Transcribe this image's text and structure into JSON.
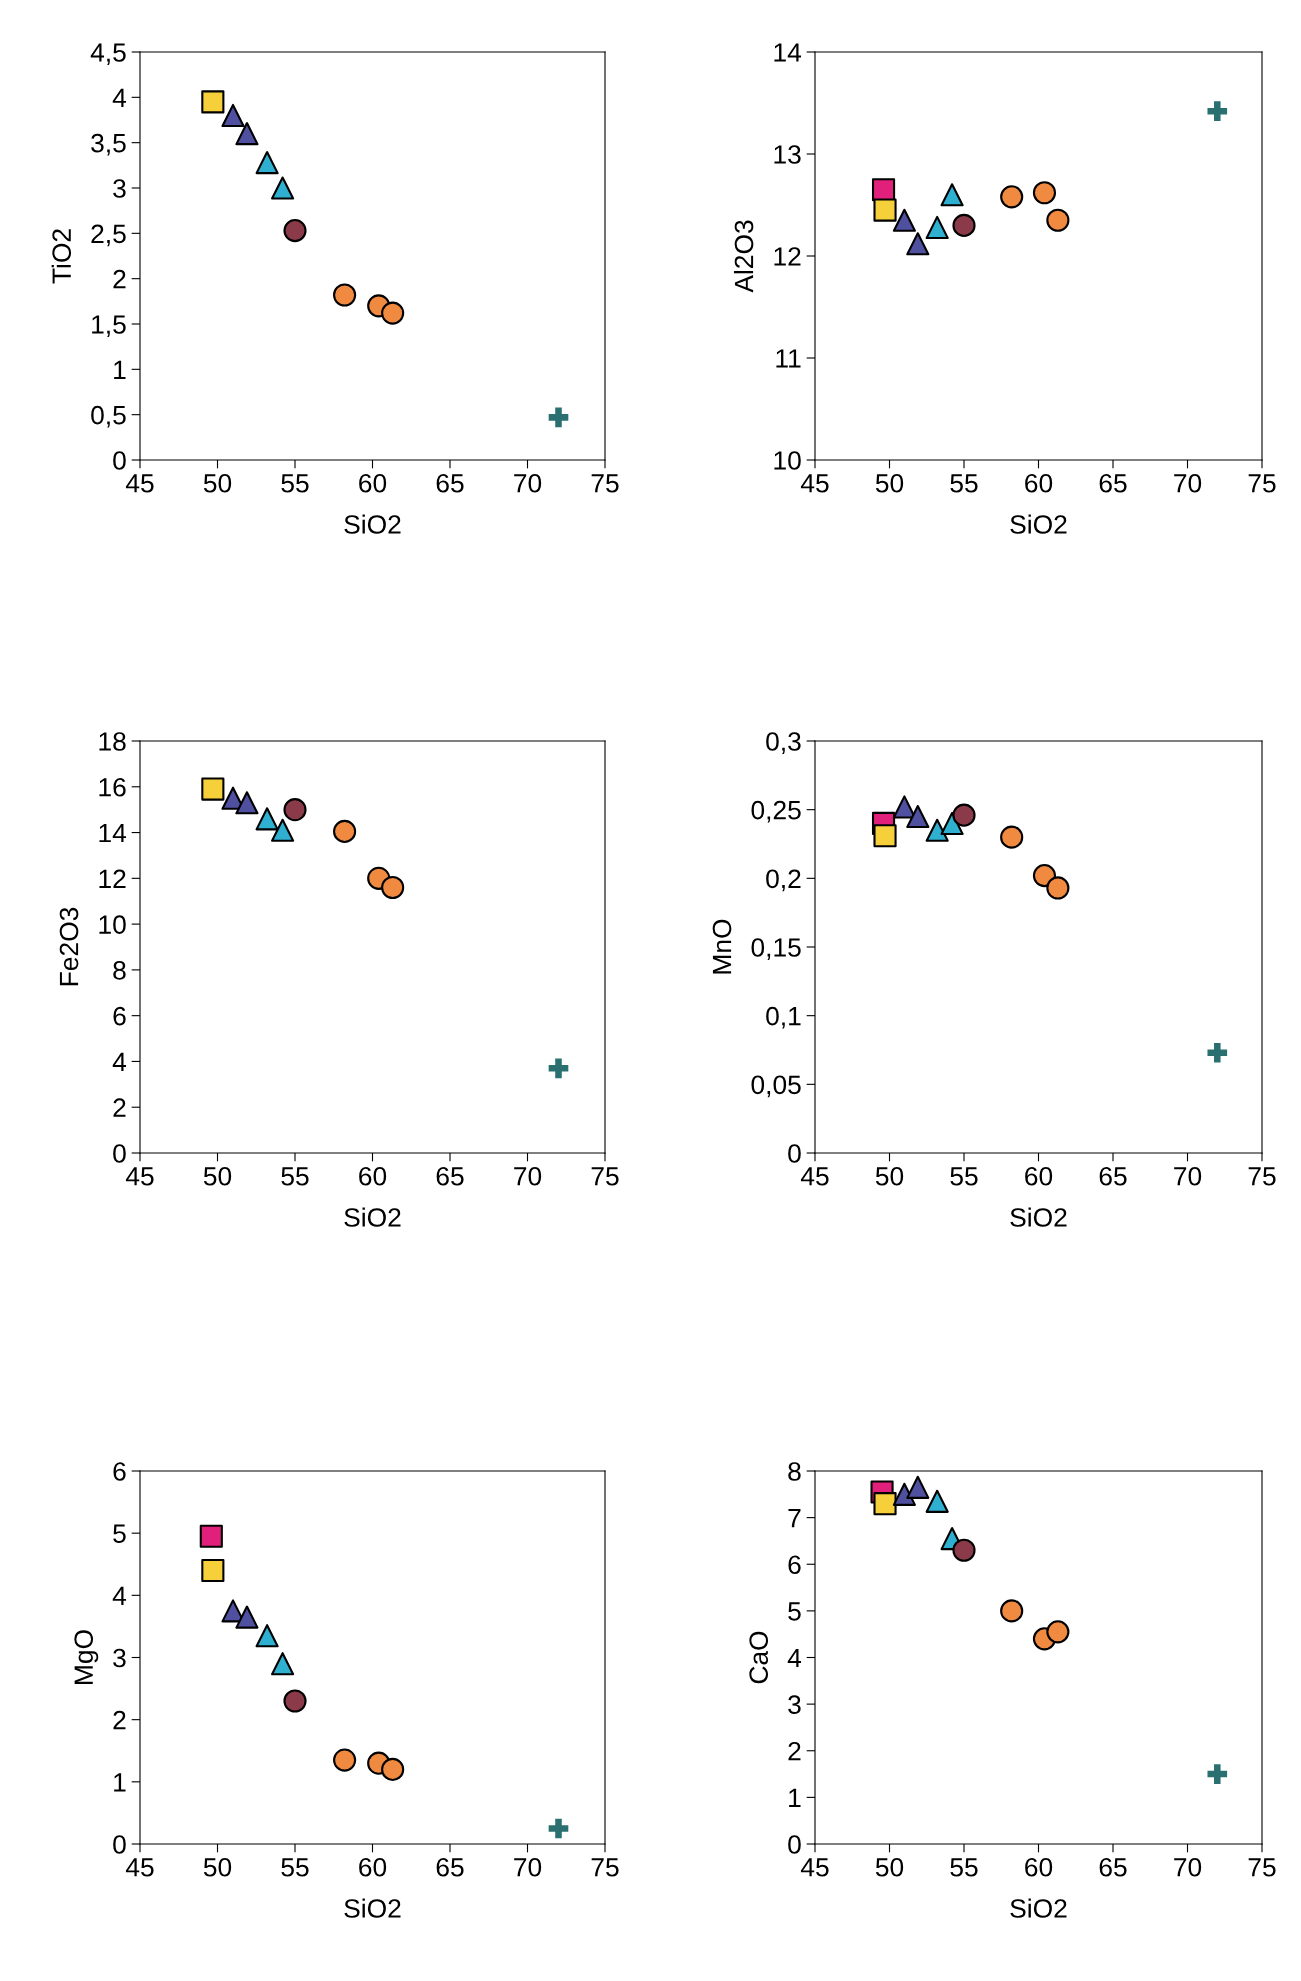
{
  "chart_data": [
    {
      "type": "scatter",
      "xlabel": "SiO2",
      "ylabel": "TiO2",
      "xlim": [
        45,
        75
      ],
      "xticks": [
        45,
        50,
        55,
        60,
        65,
        70,
        75
      ],
      "ylim": [
        0,
        4.5
      ],
      "yticks": [
        0,
        {
          "value": 0.5,
          "label": "0,5"
        },
        1,
        {
          "value": 1.5,
          "label": "1,5"
        },
        2,
        {
          "value": 2.5,
          "label": "2,5"
        },
        3,
        {
          "value": 3.5,
          "label": "3,5"
        },
        4,
        {
          "value": 4.5,
          "label": "4,5"
        }
      ],
      "grid": false,
      "legend": false,
      "series": [
        {
          "color": "#e0207a",
          "marker": "square",
          "x": [
            null
          ],
          "values": [
            null
          ]
        },
        {
          "color": "#f5d03a",
          "marker": "square",
          "x": [
            49.7
          ],
          "values": [
            3.95
          ]
        },
        {
          "color": "#5050a0",
          "marker": "triangle",
          "x": [
            51.0,
            51.9
          ],
          "values": [
            3.8,
            3.6
          ]
        },
        {
          "color": "#30b0d0",
          "marker": "triangle",
          "x": [
            53.2,
            54.2
          ],
          "values": [
            3.28,
            3.0
          ]
        },
        {
          "color": "#8b3a4a",
          "marker": "circle",
          "x": [
            55.0
          ],
          "values": [
            2.53
          ]
        },
        {
          "color": "#f08a40",
          "marker": "circle",
          "x": [
            58.2,
            60.4,
            61.3
          ],
          "values": [
            1.82,
            1.7,
            1.62
          ]
        },
        {
          "color": "#2a7070",
          "marker": "cross",
          "x": [
            72.0
          ],
          "values": [
            0.47
          ]
        }
      ]
    },
    {
      "type": "scatter",
      "xlabel": "SiO2",
      "ylabel": "Al2O3",
      "xlim": [
        45,
        75
      ],
      "xticks": [
        45,
        50,
        55,
        60,
        65,
        70,
        75
      ],
      "ylim": [
        10,
        14
      ],
      "yticks": [
        10,
        11,
        12,
        13,
        14
      ],
      "grid": false,
      "legend": false,
      "series": [
        {
          "color": "#e0207a",
          "marker": "square",
          "x": [
            49.6
          ],
          "values": [
            12.65
          ]
        },
        {
          "color": "#f5d03a",
          "marker": "square",
          "x": [
            49.7
          ],
          "values": [
            12.45
          ]
        },
        {
          "color": "#5050a0",
          "marker": "triangle",
          "x": [
            51.0,
            51.9
          ],
          "values": [
            12.35,
            12.12
          ]
        },
        {
          "color": "#30b0d0",
          "marker": "triangle",
          "x": [
            53.2,
            54.2
          ],
          "values": [
            12.28,
            12.6
          ]
        },
        {
          "color": "#8b3a4a",
          "marker": "circle",
          "x": [
            55.0
          ],
          "values": [
            12.3
          ]
        },
        {
          "color": "#f08a40",
          "marker": "circle",
          "x": [
            58.2,
            60.4,
            61.3
          ],
          "values": [
            12.58,
            12.62,
            12.35
          ]
        },
        {
          "color": "#2a7070",
          "marker": "cross",
          "x": [
            72.0
          ],
          "values": [
            13.42
          ]
        }
      ]
    },
    {
      "type": "scatter",
      "xlabel": "SiO2",
      "ylabel": "Fe2O3",
      "xlim": [
        45,
        75
      ],
      "xticks": [
        45,
        50,
        55,
        60,
        65,
        70,
        75
      ],
      "ylim": [
        0,
        18
      ],
      "yticks": [
        0,
        2,
        4,
        6,
        8,
        10,
        12,
        14,
        16,
        18
      ],
      "grid": false,
      "legend": false,
      "series": [
        {
          "color": "#e0207a",
          "marker": "square",
          "x": [
            null
          ],
          "values": [
            null
          ]
        },
        {
          "color": "#f5d03a",
          "marker": "square",
          "x": [
            49.7
          ],
          "values": [
            15.9
          ]
        },
        {
          "color": "#5050a0",
          "marker": "triangle",
          "x": [
            51.0,
            51.9
          ],
          "values": [
            15.5,
            15.3
          ]
        },
        {
          "color": "#30b0d0",
          "marker": "triangle",
          "x": [
            53.2,
            54.2
          ],
          "values": [
            14.6,
            14.1
          ]
        },
        {
          "color": "#8b3a4a",
          "marker": "circle",
          "x": [
            55.0
          ],
          "values": [
            15.0
          ]
        },
        {
          "color": "#f08a40",
          "marker": "circle",
          "x": [
            58.2,
            60.4,
            61.3
          ],
          "values": [
            14.05,
            12.0,
            11.6
          ]
        },
        {
          "color": "#2a7070",
          "marker": "cross",
          "x": [
            72.0
          ],
          "values": [
            3.7
          ]
        }
      ]
    },
    {
      "type": "scatter",
      "xlabel": "SiO2",
      "ylabel": "MnO",
      "xlim": [
        45,
        75
      ],
      "xticks": [
        45,
        50,
        55,
        60,
        65,
        70,
        75
      ],
      "ylim": [
        0,
        0.3
      ],
      "yticks": [
        0,
        {
          "value": 0.05,
          "label": "0,05"
        },
        {
          "value": 0.1,
          "label": "0,1"
        },
        {
          "value": 0.15,
          "label": "0,15"
        },
        {
          "value": 0.2,
          "label": "0,2"
        },
        {
          "value": 0.25,
          "label": "0,25"
        },
        {
          "value": 0.3,
          "label": "0,3"
        }
      ],
      "grid": false,
      "legend": false,
      "series": [
        {
          "color": "#e0207a",
          "marker": "square",
          "x": [
            49.6
          ],
          "values": [
            0.24
          ]
        },
        {
          "color": "#f5d03a",
          "marker": "square",
          "x": [
            49.7
          ],
          "values": [
            0.231
          ]
        },
        {
          "color": "#5050a0",
          "marker": "triangle",
          "x": [
            51.0,
            51.9
          ],
          "values": [
            0.252,
            0.245
          ]
        },
        {
          "color": "#30b0d0",
          "marker": "triangle",
          "x": [
            53.2,
            54.2
          ],
          "values": [
            0.235,
            0.24
          ]
        },
        {
          "color": "#8b3a4a",
          "marker": "circle",
          "x": [
            55.0
          ],
          "values": [
            0.246
          ]
        },
        {
          "color": "#f08a40",
          "marker": "circle",
          "x": [
            58.2,
            60.4,
            61.3
          ],
          "values": [
            0.23,
            0.202,
            0.193
          ]
        },
        {
          "color": "#2a7070",
          "marker": "cross",
          "x": [
            72.0
          ],
          "values": [
            0.073
          ]
        }
      ]
    },
    {
      "type": "scatter",
      "xlabel": "SiO2",
      "ylabel": "MgO",
      "xlim": [
        45,
        75
      ],
      "xticks": [
        45,
        50,
        55,
        60,
        65,
        70,
        75
      ],
      "ylim": [
        0,
        6
      ],
      "yticks": [
        0,
        1,
        2,
        3,
        4,
        5,
        6
      ],
      "grid": false,
      "legend": false,
      "series": [
        {
          "color": "#e0207a",
          "marker": "square",
          "x": [
            49.6
          ],
          "values": [
            4.95
          ]
        },
        {
          "color": "#f5d03a",
          "marker": "square",
          "x": [
            49.7
          ],
          "values": [
            4.4
          ]
        },
        {
          "color": "#5050a0",
          "marker": "triangle",
          "x": [
            51.0,
            51.9
          ],
          "values": [
            3.75,
            3.65
          ]
        },
        {
          "color": "#30b0d0",
          "marker": "triangle",
          "x": [
            53.2,
            54.2
          ],
          "values": [
            3.35,
            2.9
          ]
        },
        {
          "color": "#8b3a4a",
          "marker": "circle",
          "x": [
            55.0
          ],
          "values": [
            2.3
          ]
        },
        {
          "color": "#f08a40",
          "marker": "circle",
          "x": [
            58.2,
            60.4,
            61.3
          ],
          "values": [
            1.35,
            1.3,
            1.2
          ]
        },
        {
          "color": "#2a7070",
          "marker": "cross",
          "x": [
            72.0
          ],
          "values": [
            0.25
          ]
        }
      ]
    },
    {
      "type": "scatter",
      "xlabel": "SiO2",
      "ylabel": "CaO",
      "xlim": [
        45,
        75
      ],
      "xticks": [
        45,
        50,
        55,
        60,
        65,
        70,
        75
      ],
      "ylim": [
        0,
        8
      ],
      "yticks": [
        0,
        1,
        2,
        3,
        4,
        5,
        6,
        7,
        8
      ],
      "grid": false,
      "legend": false,
      "series": [
        {
          "color": "#e0207a",
          "marker": "square",
          "x": [
            49.5
          ],
          "values": [
            7.55
          ]
        },
        {
          "color": "#f5d03a",
          "marker": "square",
          "x": [
            49.7
          ],
          "values": [
            7.3
          ]
        },
        {
          "color": "#5050a0",
          "marker": "triangle",
          "x": [
            51.0,
            51.9
          ],
          "values": [
            7.5,
            7.65
          ]
        },
        {
          "color": "#30b0d0",
          "marker": "triangle",
          "x": [
            53.2,
            54.2
          ],
          "values": [
            7.35,
            6.55
          ]
        },
        {
          "color": "#8b3a4a",
          "marker": "circle",
          "x": [
            55.0
          ],
          "values": [
            6.3
          ]
        },
        {
          "color": "#f08a40",
          "marker": "circle",
          "x": [
            60.4,
            61.3,
            58.2
          ],
          "values": [
            4.4,
            4.55,
            5.0
          ]
        },
        {
          "color": "#2a7070",
          "marker": "cross",
          "x": [
            72.0
          ],
          "values": [
            1.5
          ]
        }
      ]
    }
  ]
}
